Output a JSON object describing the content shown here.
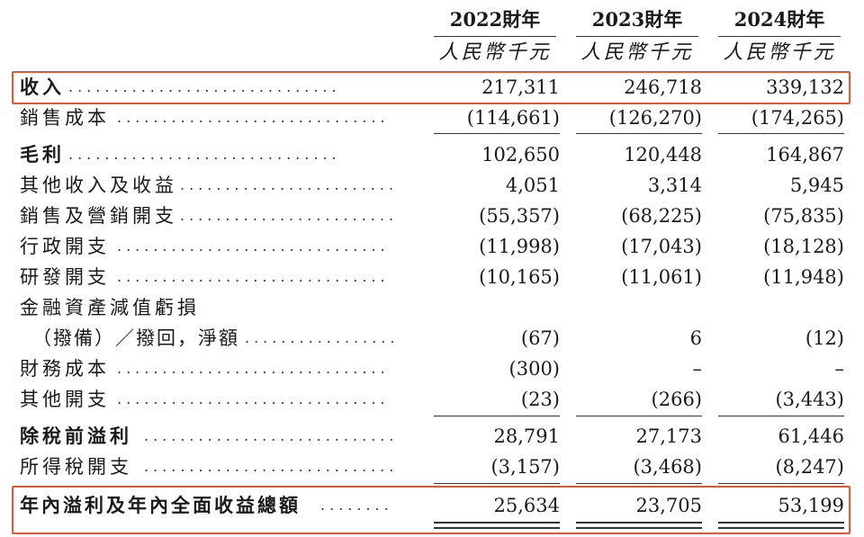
{
  "columns": [
    {
      "year": "2022財年",
      "unit": "人民幣千元"
    },
    {
      "year": "2023財年",
      "unit": "人民幣千元"
    },
    {
      "year": "2024財年",
      "unit": "人民幣千元"
    }
  ],
  "rows": [
    {
      "label": "收入",
      "values": [
        "217,311",
        "246,718",
        "339,132"
      ]
    },
    {
      "label": "銷售成本",
      "values": [
        "(114,661)",
        "(126,270)",
        "(174,265)"
      ]
    },
    {
      "label": "毛利",
      "values": [
        "102,650",
        "120,448",
        "164,867"
      ]
    },
    {
      "label": "其他收入及收益",
      "values": [
        "4,051",
        "3,314",
        "5,945"
      ]
    },
    {
      "label": "銷售及營銷開支",
      "values": [
        "(55,357)",
        "(68,225)",
        "(75,835)"
      ]
    },
    {
      "label": "行政開支",
      "values": [
        "(11,998)",
        "(17,043)",
        "(18,128)"
      ]
    },
    {
      "label": "研發開支",
      "values": [
        "(10,165)",
        "(11,061)",
        "(11,948)"
      ]
    },
    {
      "label": "金融資產減值虧損",
      "values": [
        "",
        "",
        ""
      ]
    },
    {
      "label": "（撥備）／撥回，淨額",
      "values": [
        "(67)",
        "6",
        "(12)"
      ]
    },
    {
      "label": "財務成本",
      "values": [
        "(300)",
        "–",
        "–"
      ]
    },
    {
      "label": "其他開支",
      "values": [
        "(23)",
        "(266)",
        "(3,443)"
      ]
    },
    {
      "label": "除稅前溢利",
      "values": [
        "28,791",
        "27,173",
        "61,446"
      ]
    },
    {
      "label": "所得稅開支",
      "values": [
        "(3,157)",
        "(3,468)",
        "(8,247)"
      ]
    },
    {
      "label": "年內溢利及年內全面收益總額",
      "values": [
        "25,634",
        "23,705",
        "53,199"
      ]
    }
  ],
  "colors": {
    "highlight_box": "#e4562e",
    "text": "#1a1a1a"
  }
}
